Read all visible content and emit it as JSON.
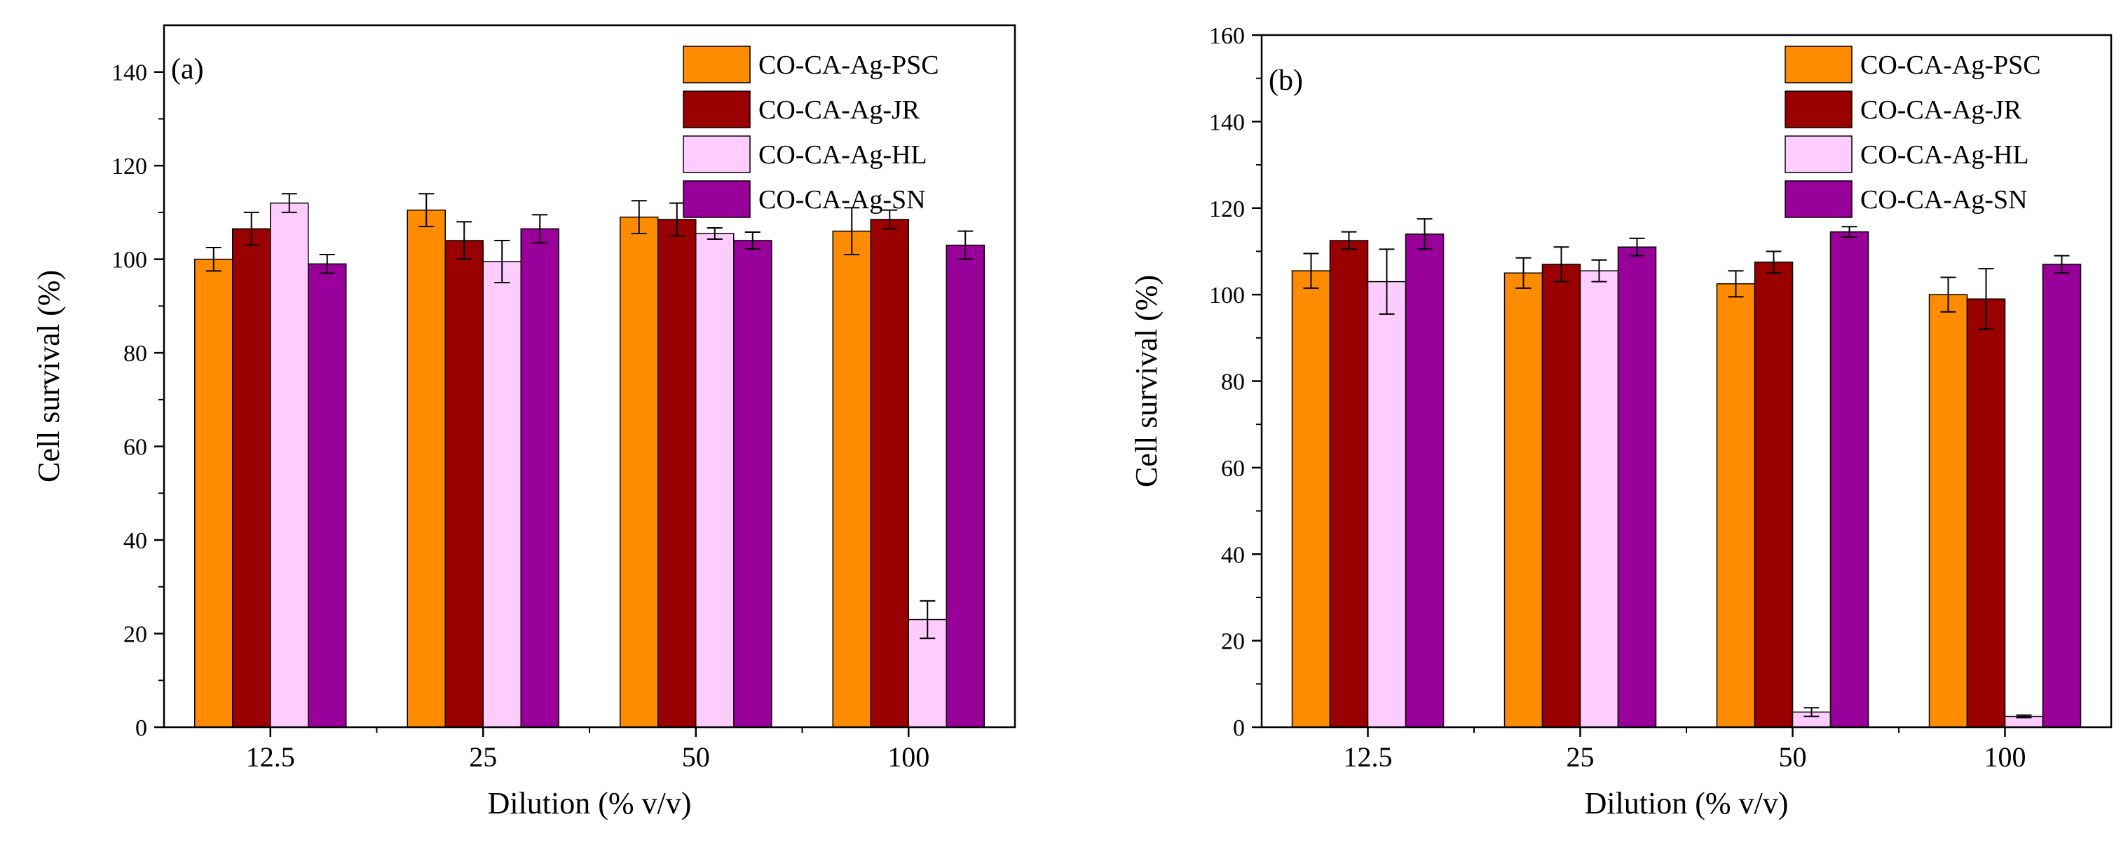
{
  "colors": {
    "CO-CA-Ag-PSC": "#FF8C00",
    "CO-CA-Ag-JR": "#990000",
    "CO-CA-Ag-HL": "#FFCCFF",
    "CO-CA-Ag-SN": "#990099"
  },
  "chart_data": [
    {
      "type": "bar",
      "panel_label": "(a)",
      "xlabel": "Dilution (% v/v)",
      "ylabel": "Cell survival (%)",
      "categories": [
        "12.5",
        "25",
        "50",
        "100"
      ],
      "ylim": [
        0,
        150
      ],
      "yticks": [
        0,
        20,
        40,
        60,
        80,
        100,
        120,
        140
      ],
      "legend_position": "top-right",
      "series": [
        {
          "name": "CO-CA-Ag-PSC",
          "values": [
            100,
            110.5,
            109,
            106
          ],
          "errors": [
            2.5,
            3.5,
            3.5,
            5
          ]
        },
        {
          "name": "CO-CA-Ag-JR",
          "values": [
            106.5,
            104,
            108.5,
            108.5
          ],
          "errors": [
            3.5,
            4,
            3.5,
            2
          ]
        },
        {
          "name": "CO-CA-Ag-HL",
          "values": [
            112,
            99.5,
            105.5,
            23
          ],
          "errors": [
            2,
            4.5,
            1.2,
            4
          ]
        },
        {
          "name": "CO-CA-Ag-SN",
          "values": [
            99,
            106.5,
            104,
            103
          ],
          "errors": [
            2,
            3,
            1.8,
            3
          ]
        }
      ]
    },
    {
      "type": "bar",
      "panel_label": "(b)",
      "xlabel": "Dilution (% v/v)",
      "ylabel": "Cell survival (%)",
      "categories": [
        "12.5",
        "25",
        "50",
        "100"
      ],
      "ylim": [
        0,
        160
      ],
      "yticks": [
        0,
        20,
        40,
        60,
        80,
        100,
        120,
        140,
        160
      ],
      "legend_position": "top-right",
      "series": [
        {
          "name": "CO-CA-Ag-PSC",
          "values": [
            105.5,
            105,
            102.5,
            100
          ],
          "errors": [
            4,
            3.5,
            3,
            4
          ]
        },
        {
          "name": "CO-CA-Ag-JR",
          "values": [
            112.5,
            107,
            107.5,
            99
          ],
          "errors": [
            2,
            4,
            2.5,
            7
          ]
        },
        {
          "name": "CO-CA-Ag-HL",
          "values": [
            103,
            105.5,
            3.5,
            2.5
          ],
          "errors": [
            7.5,
            2.5,
            1,
            0.3
          ]
        },
        {
          "name": "CO-CA-Ag-SN",
          "values": [
            114,
            111,
            114.5,
            107
          ],
          "errors": [
            3.5,
            2,
            1.2,
            2
          ]
        }
      ]
    }
  ]
}
